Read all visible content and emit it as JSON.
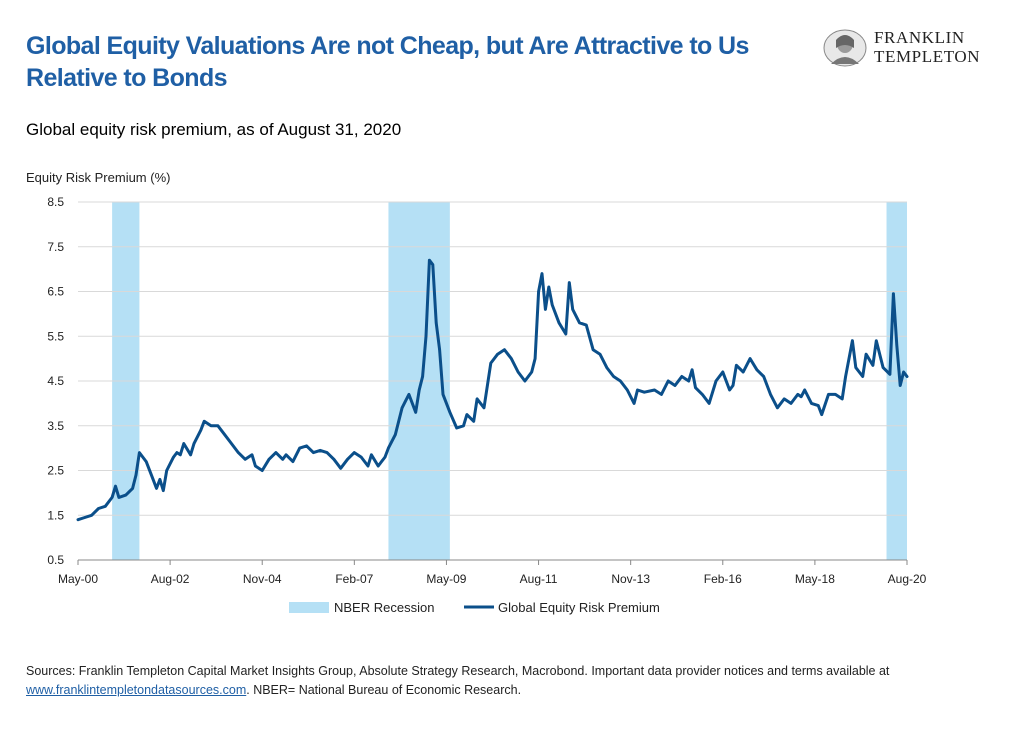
{
  "title": "Global Equity Valuations Are not Cheap, but Are Attractive to Us Relative to Bonds",
  "logo": {
    "line1": "FRANKLIN",
    "line2": "TEMPLETON"
  },
  "subtitle": "Global equity risk premium, as of August 31, 2020",
  "sources": {
    "text1": "Sources: Franklin Templeton Capital Market Insights Group, Absolute Strategy Research, Macrobond. Important data provider notices and terms available at ",
    "link": "www.franklintempletondatasources.com",
    "text2": ". NBER= National Bureau of Economic Research."
  },
  "colors": {
    "line": "#0b4f8a",
    "recession": "#b5e0f5",
    "title": "#1f5fa5",
    "grid": "#d9d9d9"
  },
  "chart_data": {
    "type": "line",
    "ylabel": "Equity Risk Premium (%)",
    "ylim": [
      0.5,
      8.5
    ],
    "yticks": [
      "8.5",
      "7.5",
      "6.5",
      "5.5",
      "4.5",
      "3.5",
      "2.5",
      "1.5",
      "0.5"
    ],
    "xlim": [
      "2000-05",
      "2020-08"
    ],
    "xticks": [
      "May-00",
      "Aug-02",
      "Nov-04",
      "Feb-07",
      "May-09",
      "Aug-11",
      "Nov-13",
      "Feb-16",
      "May-18",
      "Aug-20"
    ],
    "grid": true,
    "legend": [
      "NBER Recession",
      "Global Equity Risk Premium"
    ],
    "recessions": [
      [
        "2001-03",
        "2001-11"
      ],
      [
        "2007-12",
        "2009-06"
      ],
      [
        "2020-02",
        "2020-08"
      ]
    ],
    "series": [
      {
        "name": "Global Equity Risk Premium",
        "points": [
          [
            "2000-05",
            1.4
          ],
          [
            "2000-07",
            1.45
          ],
          [
            "2000-09",
            1.5
          ],
          [
            "2000-11",
            1.65
          ],
          [
            "2001-01",
            1.7
          ],
          [
            "2001-03",
            1.9
          ],
          [
            "2001-04",
            2.15
          ],
          [
            "2001-05",
            1.9
          ],
          [
            "2001-07",
            1.95
          ],
          [
            "2001-09",
            2.1
          ],
          [
            "2001-10",
            2.4
          ],
          [
            "2001-11",
            2.9
          ],
          [
            "2002-01",
            2.7
          ],
          [
            "2002-03",
            2.3
          ],
          [
            "2002-04",
            2.1
          ],
          [
            "2002-05",
            2.3
          ],
          [
            "2002-06",
            2.05
          ],
          [
            "2002-07",
            2.5
          ],
          [
            "2002-09",
            2.8
          ],
          [
            "2002-10",
            2.9
          ],
          [
            "2002-11",
            2.85
          ],
          [
            "2002-12",
            3.1
          ],
          [
            "2003-02",
            2.85
          ],
          [
            "2003-03",
            3.1
          ],
          [
            "2003-05",
            3.4
          ],
          [
            "2003-06",
            3.6
          ],
          [
            "2003-08",
            3.5
          ],
          [
            "2003-10",
            3.5
          ],
          [
            "2003-12",
            3.3
          ],
          [
            "2004-02",
            3.1
          ],
          [
            "2004-04",
            2.9
          ],
          [
            "2004-06",
            2.75
          ],
          [
            "2004-08",
            2.85
          ],
          [
            "2004-09",
            2.6
          ],
          [
            "2004-11",
            2.5
          ],
          [
            "2005-01",
            2.75
          ],
          [
            "2005-03",
            2.9
          ],
          [
            "2005-05",
            2.75
          ],
          [
            "2005-06",
            2.85
          ],
          [
            "2005-08",
            2.7
          ],
          [
            "2005-10",
            3.0
          ],
          [
            "2005-12",
            3.05
          ],
          [
            "2006-02",
            2.9
          ],
          [
            "2006-04",
            2.95
          ],
          [
            "2006-06",
            2.9
          ],
          [
            "2006-08",
            2.75
          ],
          [
            "2006-10",
            2.55
          ],
          [
            "2006-12",
            2.75
          ],
          [
            "2007-02",
            2.9
          ],
          [
            "2007-04",
            2.8
          ],
          [
            "2007-06",
            2.6
          ],
          [
            "2007-07",
            2.85
          ],
          [
            "2007-09",
            2.6
          ],
          [
            "2007-11",
            2.8
          ],
          [
            "2007-12",
            3.0
          ],
          [
            "2008-02",
            3.3
          ],
          [
            "2008-04",
            3.9
          ],
          [
            "2008-05",
            4.05
          ],
          [
            "2008-06",
            4.2
          ],
          [
            "2008-08",
            3.8
          ],
          [
            "2008-09",
            4.3
          ],
          [
            "2008-10",
            4.6
          ],
          [
            "2008-11",
            5.5
          ],
          [
            "2008-12",
            7.2
          ],
          [
            "2009-01",
            7.1
          ],
          [
            "2009-02",
            5.8
          ],
          [
            "2009-03",
            5.2
          ],
          [
            "2009-04",
            4.2
          ],
          [
            "2009-06",
            3.8
          ],
          [
            "2009-08",
            3.45
          ],
          [
            "2009-10",
            3.5
          ],
          [
            "2009-11",
            3.75
          ],
          [
            "2010-01",
            3.6
          ],
          [
            "2010-02",
            4.1
          ],
          [
            "2010-04",
            3.9
          ],
          [
            "2010-06",
            4.9
          ],
          [
            "2010-08",
            5.1
          ],
          [
            "2010-10",
            5.2
          ],
          [
            "2010-12",
            5.0
          ],
          [
            "2011-02",
            4.7
          ],
          [
            "2011-04",
            4.5
          ],
          [
            "2011-06",
            4.7
          ],
          [
            "2011-07",
            5.0
          ],
          [
            "2011-08",
            6.5
          ],
          [
            "2011-09",
            6.9
          ],
          [
            "2011-10",
            6.1
          ],
          [
            "2011-11",
            6.6
          ],
          [
            "2011-12",
            6.2
          ],
          [
            "2012-02",
            5.8
          ],
          [
            "2012-04",
            5.55
          ],
          [
            "2012-05",
            6.7
          ],
          [
            "2012-06",
            6.1
          ],
          [
            "2012-08",
            5.8
          ],
          [
            "2012-10",
            5.75
          ],
          [
            "2012-12",
            5.2
          ],
          [
            "2013-02",
            5.1
          ],
          [
            "2013-04",
            4.8
          ],
          [
            "2013-06",
            4.6
          ],
          [
            "2013-08",
            4.5
          ],
          [
            "2013-10",
            4.3
          ],
          [
            "2013-12",
            4.0
          ],
          [
            "2014-01",
            4.3
          ],
          [
            "2014-03",
            4.25
          ],
          [
            "2014-06",
            4.3
          ],
          [
            "2014-08",
            4.2
          ],
          [
            "2014-10",
            4.5
          ],
          [
            "2014-12",
            4.4
          ],
          [
            "2015-02",
            4.6
          ],
          [
            "2015-04",
            4.5
          ],
          [
            "2015-05",
            4.75
          ],
          [
            "2015-06",
            4.35
          ],
          [
            "2015-08",
            4.2
          ],
          [
            "2015-10",
            4.0
          ],
          [
            "2015-12",
            4.5
          ],
          [
            "2016-02",
            4.7
          ],
          [
            "2016-04",
            4.3
          ],
          [
            "2016-05",
            4.4
          ],
          [
            "2016-06",
            4.85
          ],
          [
            "2016-08",
            4.7
          ],
          [
            "2016-10",
            5.0
          ],
          [
            "2016-12",
            4.75
          ],
          [
            "2017-02",
            4.6
          ],
          [
            "2017-04",
            4.2
          ],
          [
            "2017-06",
            3.9
          ],
          [
            "2017-08",
            4.1
          ],
          [
            "2017-10",
            4.0
          ],
          [
            "2017-12",
            4.2
          ],
          [
            "2018-01",
            4.15
          ],
          [
            "2018-02",
            4.3
          ],
          [
            "2018-04",
            4.0
          ],
          [
            "2018-06",
            3.95
          ],
          [
            "2018-07",
            3.75
          ],
          [
            "2018-09",
            4.2
          ],
          [
            "2018-11",
            4.2
          ],
          [
            "2019-01",
            4.1
          ],
          [
            "2019-02",
            4.6
          ],
          [
            "2019-04",
            5.4
          ],
          [
            "2019-05",
            4.8
          ],
          [
            "2019-07",
            4.6
          ],
          [
            "2019-08",
            5.1
          ],
          [
            "2019-10",
            4.85
          ],
          [
            "2019-11",
            5.4
          ],
          [
            "2020-01",
            4.8
          ],
          [
            "2020-03",
            4.65
          ],
          [
            "2020-04",
            6.45
          ],
          [
            "2020-05",
            5.3
          ],
          [
            "2020-06",
            4.4
          ],
          [
            "2020-07",
            4.7
          ],
          [
            "2020-08",
            4.6
          ]
        ]
      }
    ]
  }
}
